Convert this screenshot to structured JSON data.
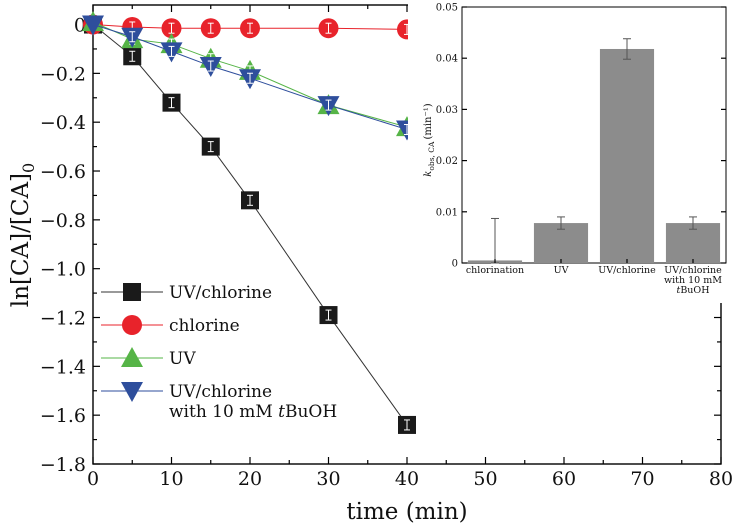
{
  "chart_data": [
    {
      "type": "line",
      "title": "",
      "xlabel": "time (min)",
      "ylabel_main": "ln[CA]/[CA]",
      "ylabel_sub": "0",
      "xlim": [
        0,
        80
      ],
      "ylim": [
        -1.8,
        0.08
      ],
      "xticks": [
        "0",
        "10",
        "20",
        "30",
        "40",
        "50",
        "60",
        "70",
        "80"
      ],
      "yticks": [
        "0",
        "−0.2",
        "−0.4",
        "−0.6",
        "−0.8",
        "−1.0",
        "−1.2",
        "−1.4",
        "−1.6",
        "−1.8"
      ],
      "legend_position": "bottom-left",
      "series": [
        {
          "name": "UV/chlorine",
          "legend_lines": [
            "UV/chlorine"
          ],
          "marker": "square",
          "color": "#1a1a1a",
          "line_color": "#333333",
          "x": [
            0,
            5,
            10,
            15,
            20,
            30,
            40
          ],
          "y": [
            0,
            -0.13,
            -0.32,
            -0.5,
            -0.72,
            -1.19,
            -1.64
          ]
        },
        {
          "name": "chlorine",
          "legend_lines": [
            "chlorine"
          ],
          "marker": "circle",
          "color": "#e8232b",
          "line_color": "#e8232b",
          "x": [
            0,
            5,
            10,
            15,
            20,
            30,
            40
          ],
          "y": [
            0,
            -0.01,
            -0.015,
            -0.015,
            -0.015,
            -0.015,
            -0.02
          ]
        },
        {
          "name": "UV",
          "legend_lines": [
            "UV"
          ],
          "marker": "triangle-up",
          "color": "#56b447",
          "line_color": "#56b447",
          "x": [
            0,
            5,
            10,
            15,
            20,
            30,
            40
          ],
          "y": [
            0.01,
            -0.06,
            -0.08,
            -0.14,
            -0.19,
            -0.33,
            -0.42
          ]
        },
        {
          "name": "UV/chlorine with 10 mM tBuOH",
          "legend_lines": [
            "UV/chlorine",
            "with 10 mM tBuOH"
          ],
          "marker": "triangle-down",
          "color": "#2e4e9c",
          "line_color": "#2e4e9c",
          "x": [
            0,
            5,
            10,
            15,
            20,
            30,
            40
          ],
          "y": [
            0,
            -0.05,
            -0.11,
            -0.17,
            -0.22,
            -0.33,
            -0.43
          ]
        }
      ]
    },
    {
      "type": "bar",
      "title": "",
      "ylabel_main": "k",
      "ylabel_sub": "obs, CA",
      "ylabel_unit": "(min⁻¹)",
      "ylim": [
        0,
        0.05
      ],
      "yticks": [
        "0",
        "0.01",
        "0.02",
        "0.03",
        "0.04",
        "0.05"
      ],
      "bar_color": "#8c8c8c",
      "categories": [
        {
          "lines": [
            "chlorination"
          ],
          "value": 0.0005,
          "error": 0.0082
        },
        {
          "lines": [
            "UV"
          ],
          "value": 0.0078,
          "error": 0.0012
        },
        {
          "lines": [
            "UV/chlorine"
          ],
          "value": 0.0418,
          "error": 0.002
        },
        {
          "lines": [
            "UV/chlorine",
            "with 10 mM",
            "tBuOH"
          ],
          "value": 0.0078,
          "error": 0.0012
        }
      ]
    }
  ]
}
